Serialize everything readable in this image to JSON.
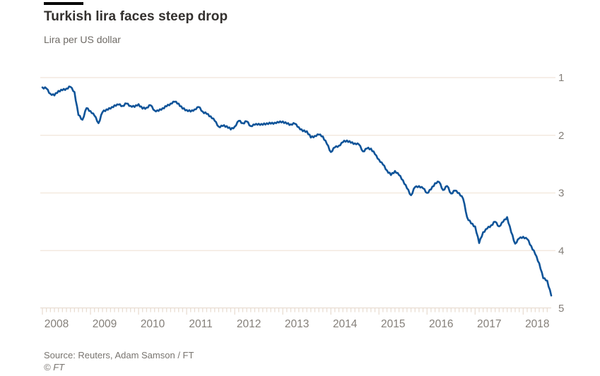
{
  "header": {
    "title": "Turkish lira faces steep drop",
    "subtitle": "Lira per US dollar"
  },
  "footer": {
    "source": "Source: Reuters, Adam Samson / FT",
    "copyright": "© FT"
  },
  "colors": {
    "line": "#0f5499",
    "grid": "#f3e9df",
    "tick": "#e9ddd2",
    "axis_text": "#847f79",
    "brand_bar": "#000000"
  },
  "chart_data": {
    "type": "line",
    "title": "Turkish lira faces steep drop",
    "subtitle": "Lira per US dollar",
    "xlabel": "",
    "ylabel": "Lira per US dollar",
    "legend": "none",
    "grid": "horizontal",
    "y_axis_side": "right",
    "y_axis_inverted": true,
    "ylim": [
      1,
      5
    ],
    "y_tick_labels": [
      "1",
      "2",
      "3",
      "4",
      "5"
    ],
    "y_tick_values": [
      1,
      2,
      3,
      4,
      5
    ],
    "x_tick_labels": [
      "2008",
      "2009",
      "2010",
      "2011",
      "2012",
      "2013",
      "2014",
      "2015",
      "2016",
      "2017",
      "2018"
    ],
    "x_minor_tick_unit": "month",
    "x_start": 2008.0,
    "x_step": 0.0833333,
    "x_end": 2018.5833,
    "series": [
      {
        "name": "Lira per US dollar",
        "values": [
          1.17,
          1.19,
          1.28,
          1.31,
          1.23,
          1.22,
          1.19,
          1.16,
          1.25,
          1.65,
          1.73,
          1.53,
          1.58,
          1.66,
          1.79,
          1.6,
          1.55,
          1.54,
          1.48,
          1.47,
          1.49,
          1.45,
          1.49,
          1.51,
          1.46,
          1.54,
          1.52,
          1.48,
          1.57,
          1.58,
          1.53,
          1.5,
          1.45,
          1.42,
          1.45,
          1.54,
          1.56,
          1.59,
          1.55,
          1.51,
          1.59,
          1.63,
          1.67,
          1.75,
          1.85,
          1.84,
          1.84,
          1.9,
          1.85,
          1.75,
          1.79,
          1.76,
          1.84,
          1.82,
          1.8,
          1.82,
          1.79,
          1.8,
          1.78,
          1.78,
          1.76,
          1.8,
          1.81,
          1.8,
          1.86,
          1.93,
          1.93,
          2.04,
          2.01,
          1.99,
          2.02,
          2.15,
          2.29,
          2.21,
          2.18,
          2.12,
          2.09,
          2.13,
          2.14,
          2.16,
          2.28,
          2.23,
          2.23,
          2.33,
          2.42,
          2.51,
          2.61,
          2.69,
          2.62,
          2.69,
          2.78,
          2.92,
          3.04,
          2.9,
          2.88,
          2.92,
          3.0,
          2.94,
          2.83,
          2.81,
          2.95,
          2.88,
          3.01,
          2.96,
          3.0,
          3.1,
          3.42,
          3.53,
          3.58,
          3.87,
          3.68,
          3.62,
          3.56,
          3.5,
          3.58,
          3.5,
          3.42,
          3.68,
          3.88,
          3.79,
          3.76,
          3.8,
          3.92,
          4.06,
          4.22,
          4.48,
          4.52,
          4.78
        ]
      }
    ]
  }
}
